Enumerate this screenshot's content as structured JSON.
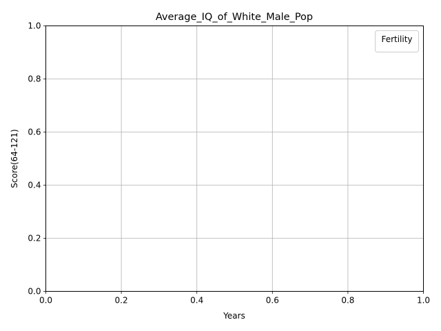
{
  "chart_data": {
    "type": "line",
    "title": "Average_IQ_of_White_Male_Pop",
    "xlabel": "Years",
    "ylabel": "Score(64-121)",
    "xlim": [
      0.0,
      1.0
    ],
    "ylim": [
      0.0,
      1.0
    ],
    "x_ticks": [
      "0.0",
      "0.2",
      "0.4",
      "0.6",
      "0.8",
      "1.0"
    ],
    "y_ticks": [
      "0.0",
      "0.2",
      "0.4",
      "0.6",
      "0.8",
      "1.0"
    ],
    "grid": true,
    "legend": {
      "title": "Fertility",
      "placement": "top-right",
      "entries": []
    },
    "series": []
  },
  "colors": {
    "grid": "#b0b0b0",
    "axis": "#000000",
    "legend_border": "#cccccc",
    "background": "#ffffff"
  }
}
